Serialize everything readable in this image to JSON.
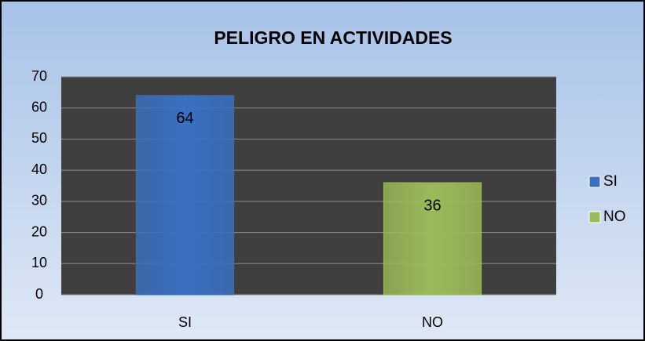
{
  "chart_data": {
    "type": "bar",
    "title": "PELIGRO EN ACTIVIDADES",
    "categories": [
      "SI",
      "NO"
    ],
    "values": [
      64,
      36
    ],
    "colors": [
      "#3a6fc1",
      "#9bbb59"
    ],
    "ylim": [
      0,
      70
    ],
    "yticks": [
      0,
      10,
      20,
      30,
      40,
      50,
      60,
      70
    ],
    "grid": true,
    "legend": "right"
  }
}
